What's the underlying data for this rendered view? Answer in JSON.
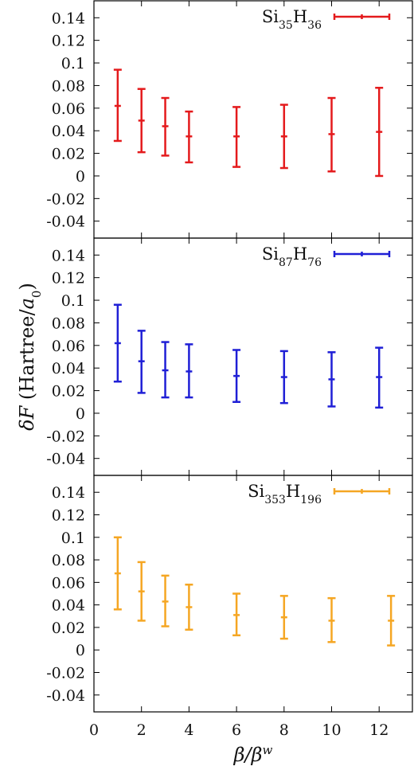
{
  "chart_data": {
    "type": "scatter",
    "error_bars": true,
    "shared_x_axis": true,
    "xlabel": {
      "main": "β/β",
      "sup": "w"
    },
    "ylabel": {
      "pre": "δ",
      "var": "F",
      "unit_pre": " (Hartree/",
      "unit_var": "a",
      "unit_sub": "0",
      "unit_post": ")"
    },
    "xlim": [
      0,
      13.4
    ],
    "ylim": [
      -0.055,
      0.155
    ],
    "x_ticks": [
      0,
      2,
      4,
      6,
      8,
      10,
      12
    ],
    "y_ticks": [
      0.14,
      0.12,
      0.1,
      0.08,
      0.06,
      0.04,
      0.02,
      0,
      -0.02,
      -0.04
    ],
    "y_tick_labels": [
      "0.14",
      "0.12",
      "0.1",
      "0.08",
      "0.06",
      "0.04",
      "0.02",
      "0",
      "-0.02",
      "-0.04"
    ],
    "grid": false,
    "legend_position": "top-right",
    "panels": [
      {
        "legend": {
          "base1": "Si",
          "sub1": "35",
          "base2": "H",
          "sub2": "36"
        },
        "color": "#e41a1c",
        "points": [
          {
            "x": 1,
            "y": 0.062,
            "ylow": 0.031,
            "yhigh": 0.094
          },
          {
            "x": 2,
            "y": 0.049,
            "ylow": 0.021,
            "yhigh": 0.077
          },
          {
            "x": 3,
            "y": 0.044,
            "ylow": 0.018,
            "yhigh": 0.069
          },
          {
            "x": 4,
            "y": 0.035,
            "ylow": 0.012,
            "yhigh": 0.057
          },
          {
            "x": 6,
            "y": 0.035,
            "ylow": 0.008,
            "yhigh": 0.061
          },
          {
            "x": 8,
            "y": 0.035,
            "ylow": 0.007,
            "yhigh": 0.063
          },
          {
            "x": 10,
            "y": 0.037,
            "ylow": 0.004,
            "yhigh": 0.069
          },
          {
            "x": 12,
            "y": 0.039,
            "ylow": 0.0,
            "yhigh": 0.078
          }
        ]
      },
      {
        "legend": {
          "base1": "Si",
          "sub1": "87",
          "base2": "H",
          "sub2": "76"
        },
        "color": "#1f1fd6",
        "points": [
          {
            "x": 1,
            "y": 0.062,
            "ylow": 0.028,
            "yhigh": 0.096
          },
          {
            "x": 2,
            "y": 0.046,
            "ylow": 0.018,
            "yhigh": 0.073
          },
          {
            "x": 3,
            "y": 0.038,
            "ylow": 0.014,
            "yhigh": 0.063
          },
          {
            "x": 4,
            "y": 0.037,
            "ylow": 0.014,
            "yhigh": 0.061
          },
          {
            "x": 6,
            "y": 0.033,
            "ylow": 0.01,
            "yhigh": 0.056
          },
          {
            "x": 8,
            "y": 0.032,
            "ylow": 0.009,
            "yhigh": 0.055
          },
          {
            "x": 10,
            "y": 0.03,
            "ylow": 0.006,
            "yhigh": 0.054
          },
          {
            "x": 12,
            "y": 0.032,
            "ylow": 0.005,
            "yhigh": 0.058
          }
        ]
      },
      {
        "legend": {
          "base1": "Si",
          "sub1": "353",
          "base2": "H",
          "sub2": "196"
        },
        "color": "#f5a623",
        "points": [
          {
            "x": 1,
            "y": 0.068,
            "ylow": 0.036,
            "yhigh": 0.1
          },
          {
            "x": 2,
            "y": 0.052,
            "ylow": 0.026,
            "yhigh": 0.078
          },
          {
            "x": 3,
            "y": 0.043,
            "ylow": 0.021,
            "yhigh": 0.066
          },
          {
            "x": 4,
            "y": 0.038,
            "ylow": 0.018,
            "yhigh": 0.058
          },
          {
            "x": 6,
            "y": 0.031,
            "ylow": 0.013,
            "yhigh": 0.05
          },
          {
            "x": 8,
            "y": 0.029,
            "ylow": 0.01,
            "yhigh": 0.048
          },
          {
            "x": 10,
            "y": 0.026,
            "ylow": 0.007,
            "yhigh": 0.046
          },
          {
            "x": 12.5,
            "y": 0.026,
            "ylow": 0.004,
            "yhigh": 0.048
          }
        ]
      }
    ]
  }
}
